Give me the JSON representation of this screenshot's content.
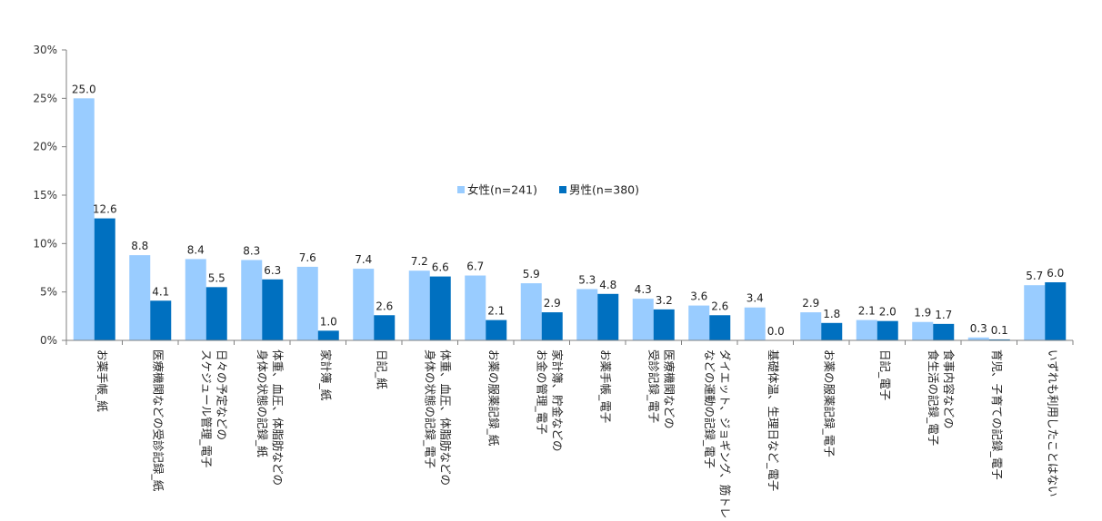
{
  "chart_data": {
    "type": "bar",
    "title": "",
    "xlabel": "",
    "ylabel": "",
    "ylim": [
      0,
      30
    ],
    "yticks": [
      0,
      5,
      10,
      15,
      20,
      25,
      30
    ],
    "y_tick_format": "{v}%",
    "grid": false,
    "legend_position": "top-center",
    "categories": [
      [
        "お薬手帳_紙"
      ],
      [
        "医療機関などの受診記録_紙"
      ],
      [
        "日々の予定などの",
        "スケジュール管理_電子"
      ],
      [
        "体重、血圧、体脂肪などの",
        "身体の状態の記録_紙"
      ],
      [
        "家計簿_紙"
      ],
      [
        "日記_紙"
      ],
      [
        "体重、血圧、体脂肪などの",
        "身体の状態の記録_電子"
      ],
      [
        "お薬の服薬記録_紙"
      ],
      [
        "家計簿、貯金などの",
        "お金の管理_電子"
      ],
      [
        "お薬手帳_電子"
      ],
      [
        "医療機関などの",
        "受診記録_電子"
      ],
      [
        "ダイエット、ジョギング、筋トレ",
        "などの運動の記録_電子"
      ],
      [
        "基礎体温、生理日など_電子"
      ],
      [
        "お薬の服薬記録_電子"
      ],
      [
        "日記_電子"
      ],
      [
        "食事内容などの",
        "食生活の記録_電子"
      ],
      [
        "育児、子育ての記録_電子"
      ],
      [
        "いずれも利用したことはない"
      ]
    ],
    "series": [
      {
        "name": "女性(n=241)",
        "color": "#99ccff",
        "values": [
          25.0,
          8.8,
          8.4,
          8.3,
          7.6,
          7.4,
          7.2,
          6.7,
          5.9,
          5.3,
          4.3,
          3.6,
          3.4,
          2.9,
          2.1,
          1.9,
          0.3,
          5.7
        ],
        "labels": [
          "25.0",
          "8.8",
          "8.4",
          "8.3",
          "7.6",
          "7.4",
          "7.2",
          "6.7",
          "5.9",
          "5.3",
          "4.3",
          "3.6",
          "3.4",
          "2.9",
          "2.1",
          "1.9",
          "0.3",
          "5.7"
        ]
      },
      {
        "name": "男性(n=380)",
        "color": "#0070c0",
        "values": [
          12.6,
          4.1,
          5.5,
          6.3,
          1.0,
          2.6,
          6.6,
          2.1,
          2.9,
          4.8,
          3.2,
          2.6,
          0.0,
          1.8,
          2.0,
          1.7,
          0.1,
          6.0
        ],
        "labels": [
          "12.6",
          "4.1",
          "5.5",
          "6.3",
          "1.0",
          "2.6",
          "6.6",
          "2.1",
          "2.9",
          "4.8",
          "3.2",
          "2.6",
          "0.0",
          "1.8",
          "2.0",
          "1.7",
          "0.1",
          "6.0"
        ]
      }
    ]
  }
}
